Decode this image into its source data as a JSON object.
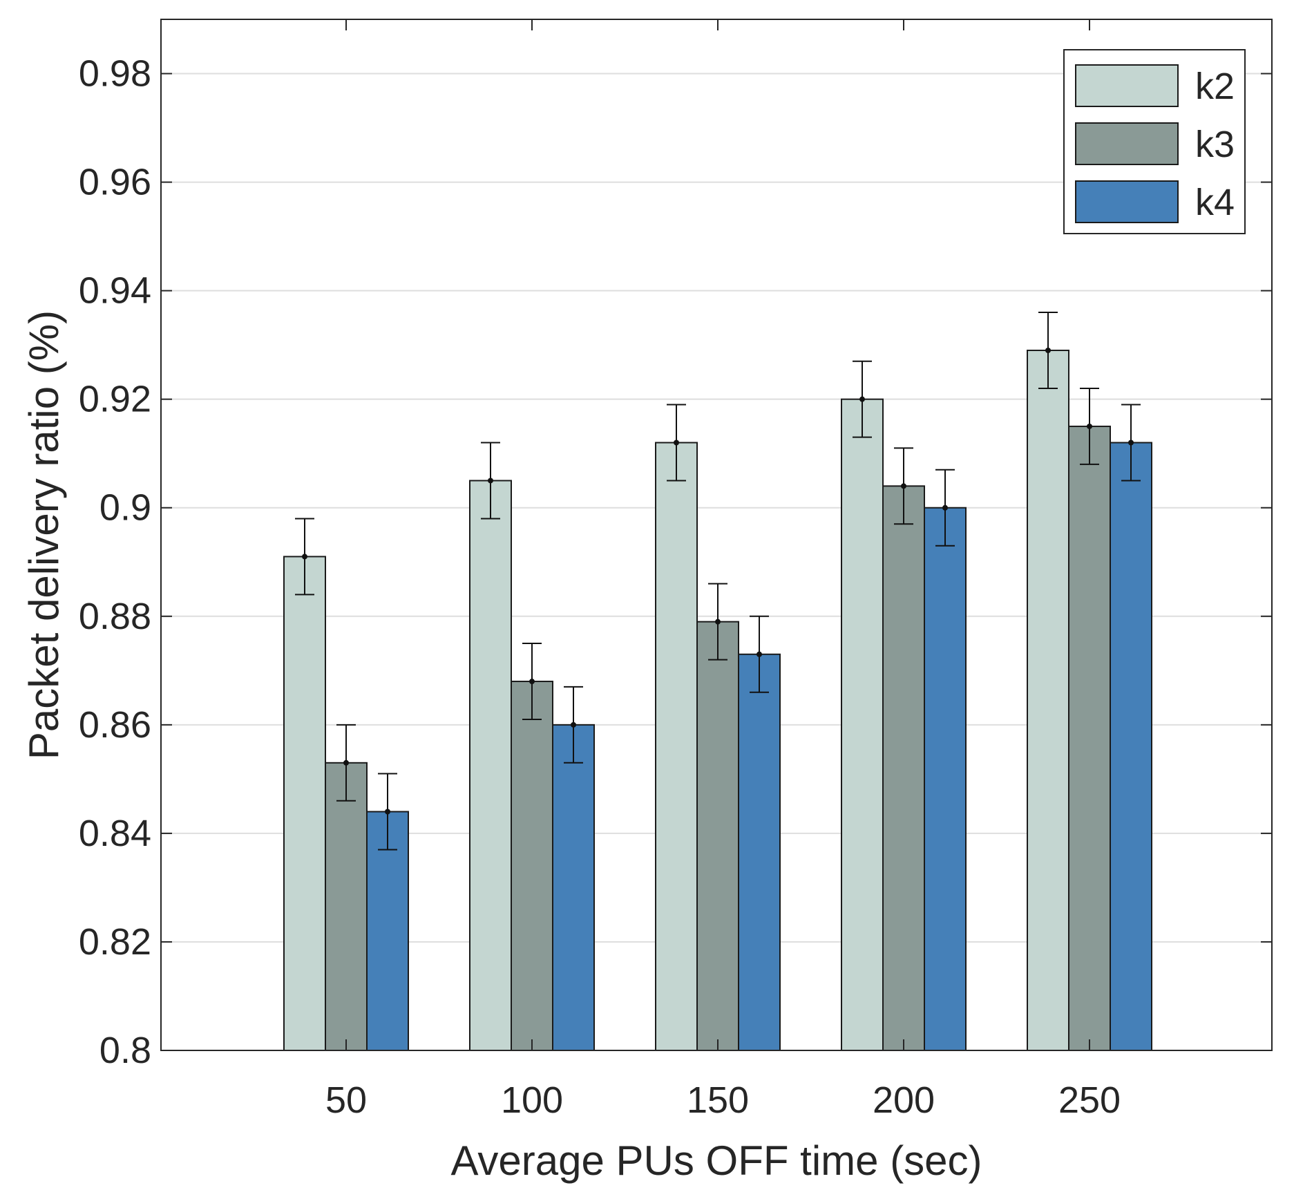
{
  "chart_data": {
    "type": "bar",
    "title": "",
    "xlabel": "Average PUs OFF time (sec)",
    "ylabel": "Packet delivery ratio (%)",
    "categories": [
      "50",
      "100",
      "150",
      "200",
      "250"
    ],
    "ylim": [
      0.8,
      0.99
    ],
    "yticks": [
      0.8,
      0.82,
      0.84,
      0.86,
      0.88,
      0.9,
      0.92,
      0.94,
      0.96,
      0.98
    ],
    "ytick_labels": [
      "0.8",
      "0.82",
      "0.84",
      "0.86",
      "0.88",
      "0.9",
      "0.92",
      "0.94",
      "0.96",
      "0.98"
    ],
    "grid": true,
    "legend_position": "top-right",
    "series": [
      {
        "name": "k2",
        "color": "#c4d6d1",
        "values": [
          0.891,
          0.905,
          0.912,
          0.92,
          0.929
        ],
        "error": [
          0.007,
          0.007,
          0.007,
          0.007,
          0.007
        ]
      },
      {
        "name": "k3",
        "color": "#8a9a96",
        "values": [
          0.853,
          0.868,
          0.879,
          0.904,
          0.915
        ],
        "error": [
          0.007,
          0.007,
          0.007,
          0.007,
          0.007
        ]
      },
      {
        "name": "k4",
        "color": "#4580b8",
        "values": [
          0.844,
          0.86,
          0.873,
          0.9,
          0.912
        ],
        "error": [
          0.007,
          0.007,
          0.007,
          0.007,
          0.007
        ]
      }
    ]
  }
}
